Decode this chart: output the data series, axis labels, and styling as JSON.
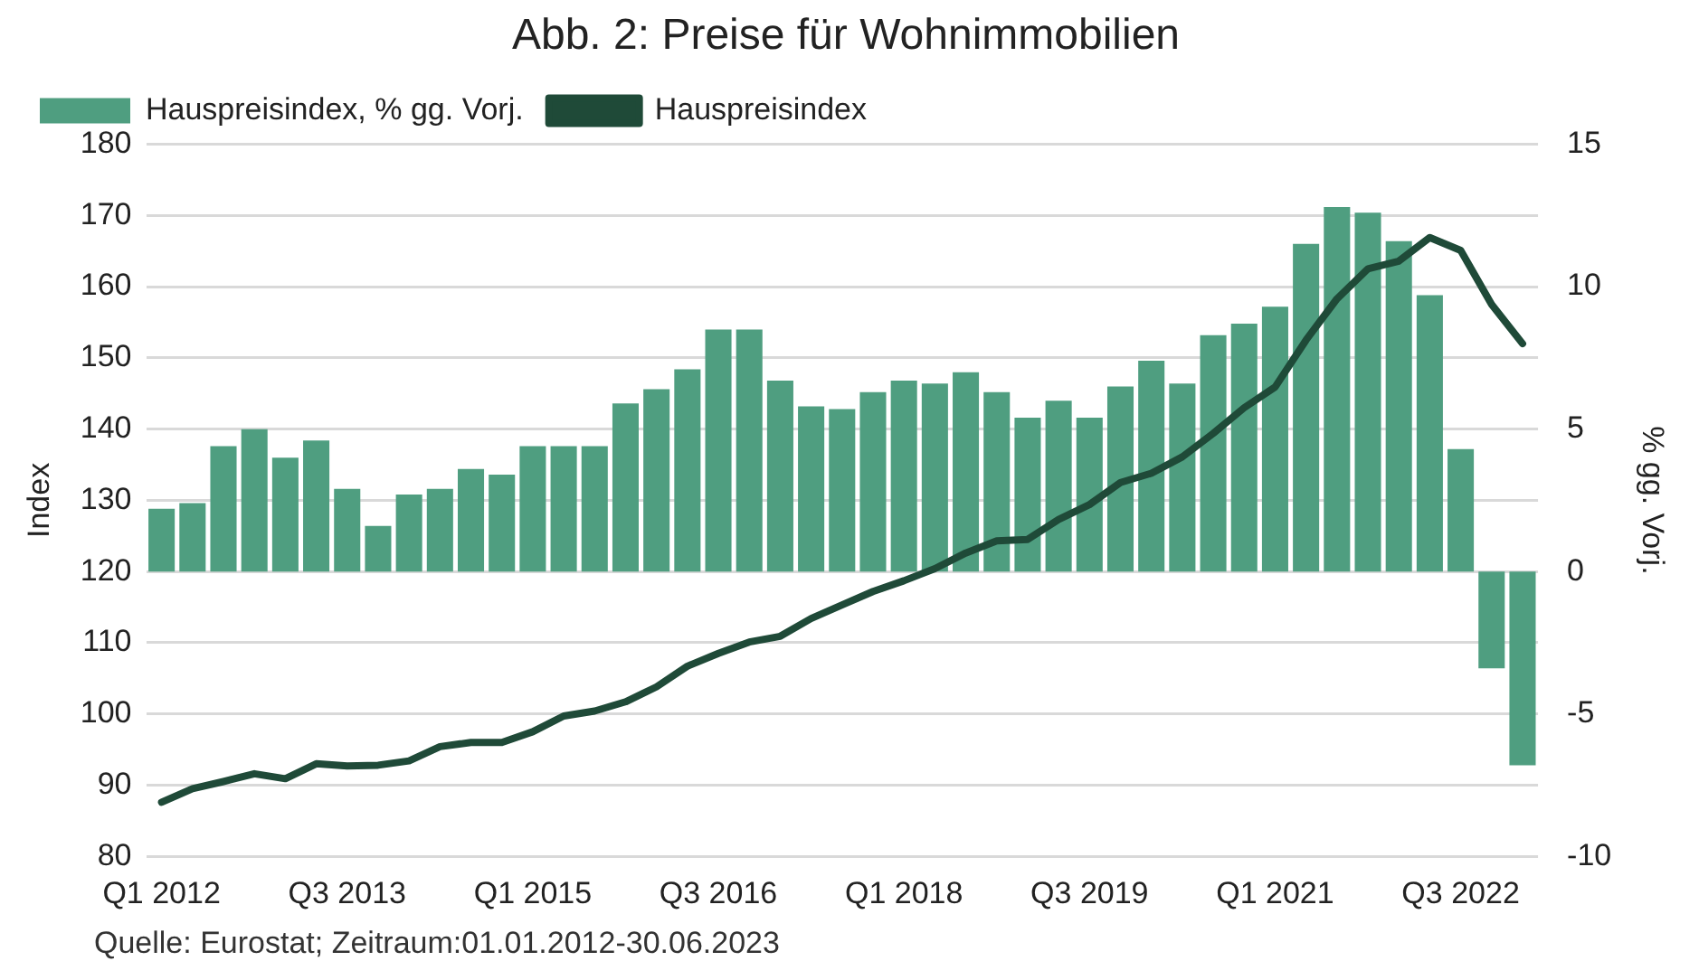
{
  "chart_data": {
    "type": "bar",
    "title": "Abb. 2: Preise für Wohnimmobilien",
    "ylabel": "Index",
    "y2label": "% gg. Vorj.",
    "annotations": [
      "Quelle: Eurostat; Zeitraum:01.01.2012-30.06.2023"
    ],
    "categories": [
      "Q1 2012",
      null,
      null,
      null,
      null,
      null,
      "Q3 2013",
      null,
      null,
      null,
      null,
      null,
      "Q1 2015",
      null,
      null,
      null,
      null,
      null,
      "Q3 2016",
      null,
      null,
      null,
      null,
      null,
      "Q1 2018",
      null,
      null,
      null,
      null,
      null,
      "Q3 2019",
      null,
      null,
      null,
      null,
      null,
      "Q1 2021",
      null,
      null,
      null,
      null,
      null,
      "Q3 2022",
      null,
      null
    ],
    "series": [
      {
        "name": "Hauspreisindex, % gg. Vorj.",
        "axis": "y2",
        "color": "#4f9e80",
        "values": [
          2.2,
          2.4,
          4.4,
          5.0,
          4.0,
          4.6,
          2.9,
          1.6,
          2.7,
          2.9,
          3.6,
          3.4,
          4.4,
          4.4,
          4.4,
          5.9,
          6.4,
          7.1,
          8.5,
          8.5,
          6.7,
          5.8,
          5.7,
          6.3,
          6.7,
          6.6,
          7.0,
          6.3,
          5.4,
          6.0,
          5.4,
          6.5,
          7.4,
          6.6,
          8.3,
          8.7,
          9.3,
          11.5,
          12.8,
          12.6,
          11.6,
          9.7,
          4.3,
          -3.4,
          -6.8
        ]
      },
      {
        "name": "Hauspreisindex",
        "type": "line",
        "axis": "y",
        "color": "#1f4a38",
        "values": [
          87.6,
          89.5,
          90.5,
          91.6,
          90.9,
          93.0,
          92.7,
          92.8,
          93.4,
          95.4,
          96.0,
          96.0,
          97.5,
          99.7,
          100.4,
          101.7,
          103.8,
          106.7,
          108.5,
          110.1,
          110.9,
          113.4,
          115.3,
          117.2,
          118.7,
          120.4,
          122.6,
          124.3,
          124.5,
          127.3,
          129.4,
          132.5,
          133.8,
          136.1,
          139.4,
          143.0,
          145.9,
          152.5,
          158.3,
          162.5,
          163.6,
          166.9,
          165.1,
          157.5,
          152.0
        ]
      }
    ],
    "ylim": [
      80,
      180
    ],
    "yticks": [
      80,
      90,
      100,
      110,
      120,
      130,
      140,
      150,
      160,
      170,
      180
    ],
    "y2lim": [
      -10,
      15
    ],
    "y2ticks": [
      -10,
      -5,
      0,
      5,
      10,
      15
    ],
    "grid": "y",
    "legend": "top left",
    "marker": "none"
  }
}
